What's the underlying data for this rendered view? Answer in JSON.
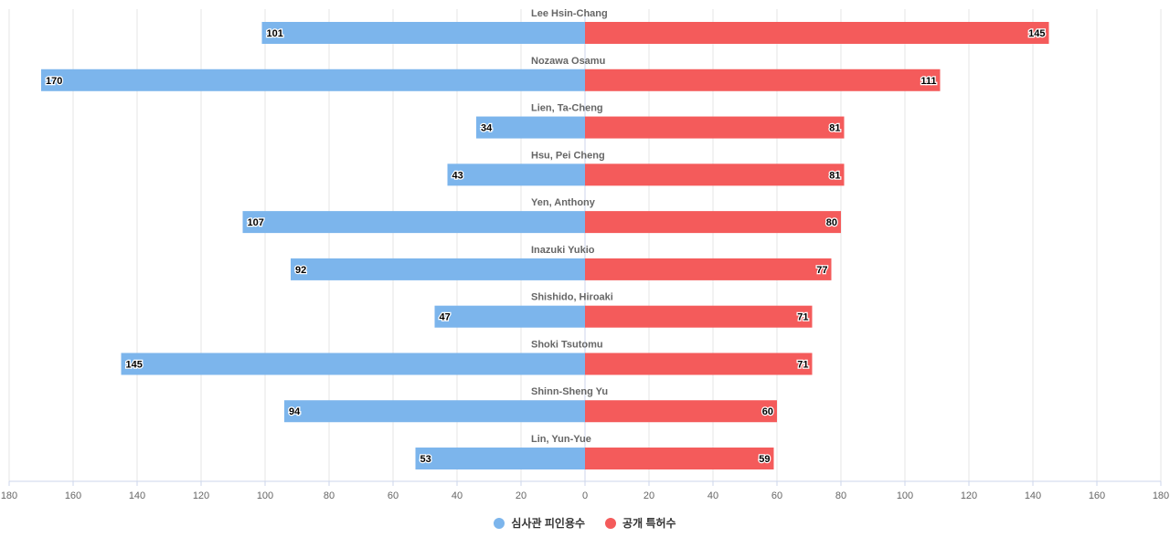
{
  "chart_data": {
    "type": "bar",
    "orientation": "horizontal-butterfly",
    "categories": [
      "Lee Hsin-Chang",
      "Nozawa Osamu",
      "Lien, Ta-Cheng",
      "Hsu, Pei Cheng",
      "Yen, Anthony",
      "Inazuki Yukio",
      "Shishido, Hiroaki",
      "Shoki Tsutomu",
      "Shinn-Sheng Yu",
      "Lin, Yun-Yue"
    ],
    "series": [
      {
        "name": "심사관 피인용수",
        "color": "#7cb5ec",
        "side": "left",
        "values": [
          101,
          170,
          34,
          43,
          107,
          92,
          47,
          145,
          94,
          53
        ]
      },
      {
        "name": "공개 특허수",
        "color": "#f45b5b",
        "side": "right",
        "values": [
          145,
          111,
          81,
          81,
          80,
          77,
          71,
          71,
          60,
          59
        ]
      }
    ],
    "xlim": [
      -180,
      180
    ],
    "tick_labels": [
      "180",
      "160",
      "140",
      "120",
      "100",
      "80",
      "60",
      "40",
      "20",
      "0",
      "20",
      "40",
      "60",
      "80",
      "100",
      "120",
      "140",
      "160",
      "180"
    ],
    "grid": true,
    "legend": "bottom-center"
  }
}
